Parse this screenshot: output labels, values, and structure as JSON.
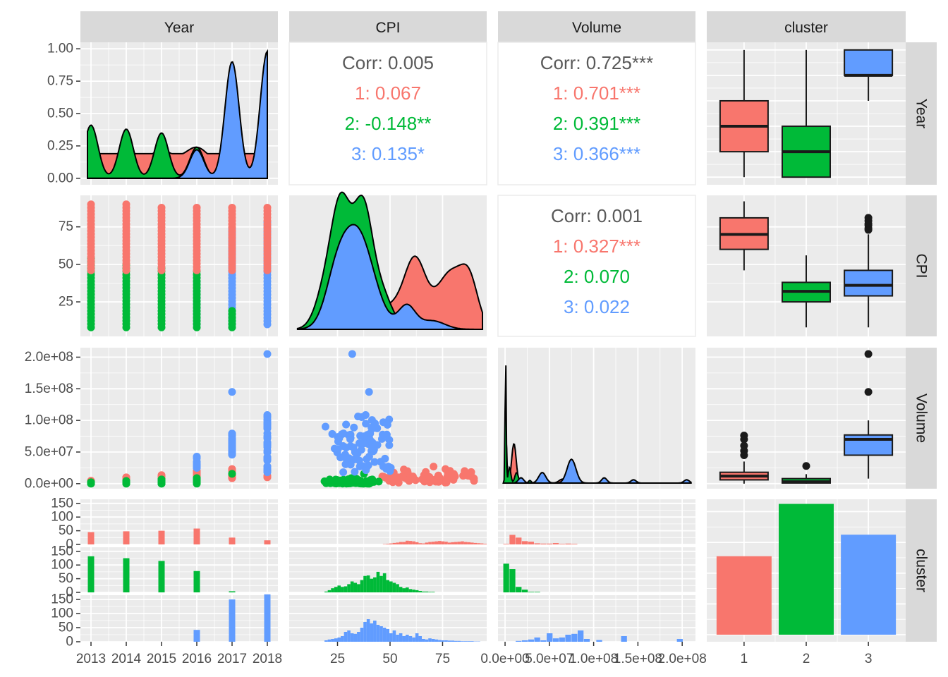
{
  "colors": {
    "cluster_1": "#F8766D",
    "cluster_2": "#00BA38",
    "cluster_3": "#619CFF",
    "overall_text": "#595959",
    "panel_bg": "#EBEBEB",
    "strip_bg": "#D9D9D9",
    "grid": "#FFFFFF"
  },
  "chart_data": {
    "type": "pairs",
    "variables": [
      "Year",
      "CPI",
      "Volume",
      "cluster"
    ],
    "row_strips": [
      "Year",
      "CPI",
      "Volume",
      "cluster"
    ],
    "clusters": [
      "1",
      "2",
      "3"
    ],
    "axes": {
      "Year": {
        "range": [
          2012.7,
          2018.3
        ],
        "ticks": [
          2013,
          2014,
          2015,
          2016,
          2017,
          2018
        ],
        "tick_labels": [
          "2013",
          "2014",
          "2015",
          "2016",
          "2017",
          "2018"
        ]
      },
      "CPI": {
        "range": [
          2,
          96
        ],
        "ticks": [
          25,
          50,
          75
        ],
        "tick_labels": [
          "25",
          "50",
          "75"
        ]
      },
      "Volume": {
        "range": [
          -8000000,
          215000000
        ],
        "ticks": [
          0,
          50000000,
          100000000,
          150000000,
          200000000
        ],
        "tick_labels": [
          "0.0e+00",
          "5.0e+07",
          "1.0e+08",
          "1.5e+08",
          "2.0e+08"
        ]
      },
      "cluster": {
        "ticks": [
          1,
          2,
          3
        ],
        "tick_labels": [
          "1",
          "2",
          "3"
        ]
      },
      "density": {
        "range": [
          -0.05,
          1.05
        ],
        "ticks": [
          0,
          0.25,
          0.5,
          0.75,
          1.0
        ],
        "tick_labels": [
          "0.00",
          "0.25",
          "0.50",
          "0.75",
          "1.00"
        ]
      },
      "count": {
        "range": [
          0,
          165
        ],
        "ticks": [
          0,
          50,
          100,
          150
        ],
        "tick_labels": [
          "0",
          "50",
          "100",
          "150"
        ]
      }
    },
    "correlations": [
      {
        "pair": "Year-CPI",
        "overall": "Corr: 0.005",
        "by_cluster": [
          "1: 0.067",
          "2: -0.148**",
          "3: 0.135*"
        ]
      },
      {
        "pair": "Year-Volume",
        "overall": "Corr: 0.725***",
        "by_cluster": [
          "1: 0.701***",
          "2: 0.391***",
          "3: 0.366***"
        ]
      },
      {
        "pair": "CPI-Volume",
        "overall": "Corr: 0.001",
        "by_cluster": [
          "1: 0.327***",
          "2: 0.070",
          "3: 0.022"
        ]
      }
    ],
    "cluster_counts": [
      {
        "cluster": "1",
        "count": 255
      },
      {
        "cluster": "2",
        "count": 425
      },
      {
        "cluster": "3",
        "count": 325
      }
    ],
    "year_counts_by_cluster": {
      "x": [
        2013,
        2014,
        2015,
        2016,
        2017,
        2018
      ],
      "1": [
        45,
        48,
        50,
        58,
        25,
        15
      ],
      "2": [
        132,
        125,
        115,
        78,
        4,
        0
      ],
      "3": [
        0,
        0,
        0,
        42,
        150,
        168
      ]
    },
    "boxplots": {
      "Year": [
        {
          "cluster": "1",
          "min": 2013,
          "q1": 2014,
          "median": 2015,
          "q3": 2016,
          "max": 2018
        },
        {
          "cluster": "2",
          "min": 2013,
          "q1": 2013,
          "median": 2014,
          "q3": 2015,
          "max": 2018
        },
        {
          "cluster": "3",
          "min": 2016,
          "q1": 2017,
          "median": 2017,
          "q3": 2018,
          "max": 2018
        }
      ],
      "CPI": [
        {
          "cluster": "1",
          "min": 46,
          "q1": 60,
          "median": 70,
          "q3": 81,
          "max": 92,
          "outliers": []
        },
        {
          "cluster": "2",
          "min": 8,
          "q1": 25,
          "median": 32,
          "q3": 38,
          "max": 56,
          "outliers": []
        },
        {
          "cluster": "3",
          "min": 8,
          "q1": 29,
          "median": 36,
          "q3": 46,
          "max": 70,
          "outliers": [
            73,
            74,
            76,
            77,
            79,
            81
          ]
        }
      ],
      "Volume": [
        {
          "cluster": "1",
          "min": 0,
          "q1": 6000000,
          "median": 12000000,
          "q3": 18000000,
          "max": 35000000,
          "outliers": [
            45000000,
            52000000,
            60000000,
            70000000,
            76000000
          ]
        },
        {
          "cluster": "2",
          "min": 0,
          "q1": 1000000,
          "median": 3000000,
          "q3": 8000000,
          "max": 15000000,
          "outliers": [
            28000000
          ]
        },
        {
          "cluster": "3",
          "min": 8000000,
          "q1": 45000000,
          "median": 70000000,
          "q3": 77000000,
          "max": 100000000,
          "outliers": [
            145000000,
            205000000
          ]
        }
      ]
    }
  }
}
